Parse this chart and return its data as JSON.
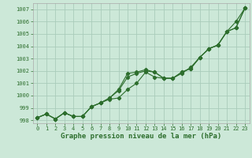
{
  "title": "Graphe pression niveau de la mer (hPa)",
  "bg_color": "#cce8d8",
  "grid_color": "#aaccbb",
  "line_color": "#2d6e2d",
  "x_values": [
    0,
    1,
    2,
    3,
    4,
    5,
    6,
    7,
    8,
    9,
    10,
    11,
    12,
    13,
    14,
    15,
    16,
    17,
    18,
    19,
    20,
    21,
    22,
    23
  ],
  "line1": [
    998.2,
    998.5,
    998.1,
    998.6,
    998.3,
    998.3,
    999.1,
    999.4,
    999.7,
    999.8,
    1000.5,
    1001.0,
    1001.9,
    1001.5,
    1001.4,
    1001.4,
    1001.8,
    1002.3,
    1003.1,
    1003.8,
    1004.1,
    1005.2,
    1005.5,
    1007.1
  ],
  "line2": [
    998.2,
    998.5,
    998.1,
    998.6,
    998.3,
    998.3,
    999.1,
    999.4,
    999.8,
    1000.4,
    1001.5,
    1001.8,
    1002.0,
    1001.9,
    1001.4,
    1001.4,
    1001.9,
    1002.2,
    1003.1,
    1003.8,
    1004.1,
    1005.2,
    1005.5,
    1007.1
  ],
  "line3": [
    998.2,
    998.5,
    998.1,
    998.6,
    998.3,
    998.3,
    999.1,
    999.4,
    999.8,
    1000.5,
    1001.8,
    1001.9,
    1002.1,
    1001.9,
    1001.4,
    1001.4,
    1001.9,
    1002.2,
    1003.1,
    1003.8,
    1004.1,
    1005.2,
    1006.0,
    1007.1
  ],
  "ylim_min": 997.75,
  "ylim_max": 1007.5,
  "yticks": [
    998,
    999,
    1000,
    1001,
    1002,
    1003,
    1004,
    1005,
    1006,
    1007
  ],
  "xticks": [
    0,
    1,
    2,
    3,
    4,
    5,
    6,
    7,
    8,
    9,
    10,
    11,
    12,
    13,
    14,
    15,
    16,
    17,
    18,
    19,
    20,
    21,
    22,
    23
  ],
  "title_fontsize": 6.5,
  "tick_fontsize": 5.0,
  "marker_size": 2.2,
  "line_width": 0.8
}
